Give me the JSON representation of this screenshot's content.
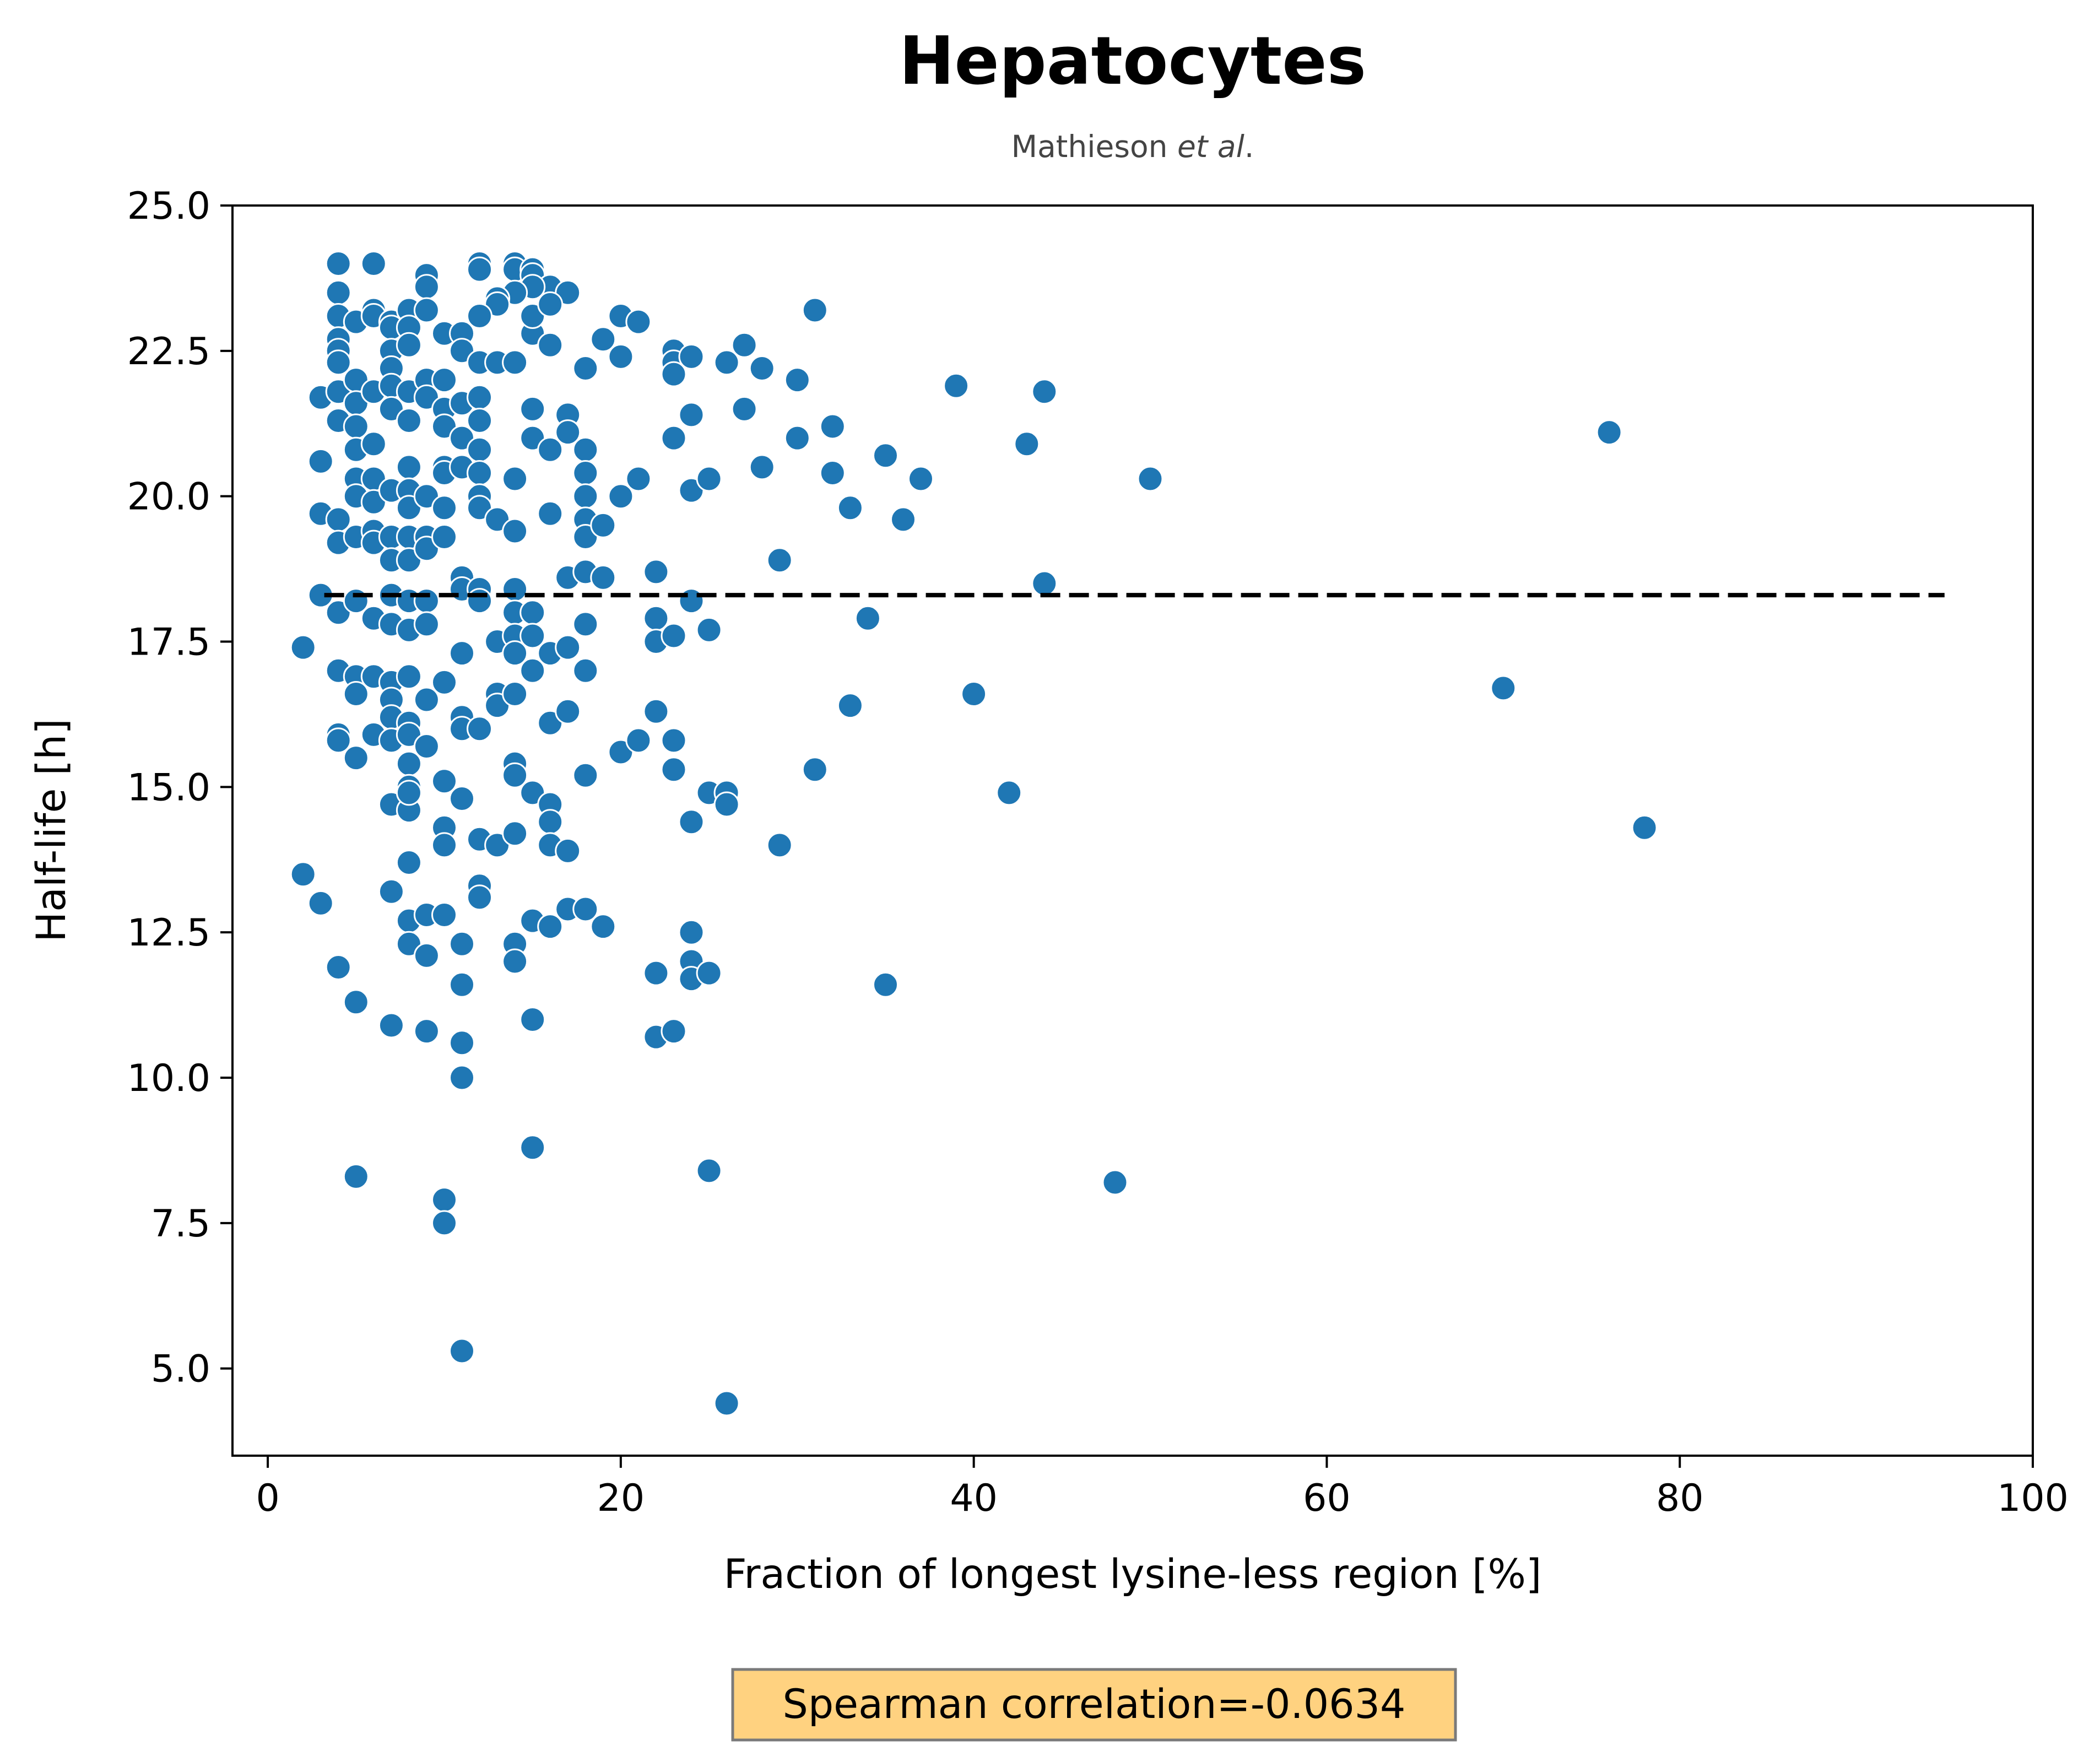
{
  "chart_data": {
    "type": "scatter",
    "title": "Hepatocytes",
    "subtitle_prefix": "Mathieson ",
    "subtitle_italic": "et al",
    "subtitle_suffix": ".",
    "xlabel": "Fraction of longest lysine-less region [%]",
    "ylabel": "Half-life [h]",
    "xlim": [
      -2,
      100
    ],
    "ylim": [
      3.5,
      25
    ],
    "xticks": [
      0,
      20,
      40,
      60,
      80,
      100
    ],
    "xtick_labels": [
      "0",
      "20",
      "40",
      "60",
      "80",
      "100"
    ],
    "yticks": [
      5,
      7.5,
      10,
      12.5,
      15,
      17.5,
      20,
      22.5,
      25
    ],
    "ytick_labels": [
      "5.0",
      "7.5",
      "10.0",
      "12.5",
      "15.0",
      "17.5",
      "20.0",
      "22.5",
      "25.0"
    ],
    "grid": false,
    "marker_color": "#1f77b4",
    "reference_line": {
      "y": 18.3,
      "x": [
        3.2,
        95
      ],
      "style": "dashed",
      "color": "#000000"
    },
    "annotation": {
      "text": "Spearman correlation=-0.0634",
      "background": "#ffd280",
      "border": "#7a7a7a"
    },
    "points": [
      [
        4,
        24.0
      ],
      [
        6,
        24.0
      ],
      [
        4,
        23.5
      ],
      [
        4,
        23.1
      ],
      [
        4,
        22.7
      ],
      [
        4,
        22.5
      ],
      [
        4,
        22.3
      ],
      [
        5,
        23.0
      ],
      [
        6,
        23.2
      ],
      [
        6,
        23.1
      ],
      [
        7,
        23.0
      ],
      [
        7,
        22.9
      ],
      [
        7,
        22.5
      ],
      [
        7,
        22.2
      ],
      [
        8,
        23.2
      ],
      [
        8,
        22.9
      ],
      [
        8,
        22.6
      ],
      [
        9,
        23.8
      ],
      [
        9,
        23.6
      ],
      [
        9,
        23.2
      ],
      [
        10,
        22.8
      ],
      [
        12,
        24.0
      ],
      [
        12,
        23.9
      ],
      [
        14,
        24.0
      ],
      [
        14,
        23.9
      ],
      [
        15,
        23.9
      ],
      [
        15,
        23.8
      ],
      [
        16,
        23.6
      ],
      [
        17,
        23.5
      ],
      [
        15,
        23.6
      ],
      [
        14,
        23.5
      ],
      [
        13,
        23.4
      ],
      [
        13,
        23.3
      ],
      [
        12,
        23.1
      ],
      [
        11,
        22.8
      ],
      [
        11,
        22.5
      ],
      [
        12,
        22.3
      ],
      [
        13,
        22.3
      ],
      [
        14,
        22.3
      ],
      [
        15,
        22.8
      ],
      [
        16,
        22.6
      ],
      [
        15,
        23.1
      ],
      [
        16,
        23.3
      ],
      [
        20,
        23.1
      ],
      [
        21,
        23.0
      ],
      [
        19,
        22.7
      ],
      [
        20,
        22.4
      ],
      [
        18,
        22.2
      ],
      [
        23,
        22.5
      ],
      [
        23,
        22.3
      ],
      [
        23,
        22.1
      ],
      [
        24,
        22.4
      ],
      [
        26,
        22.3
      ],
      [
        27,
        22.6
      ],
      [
        28,
        22.2
      ],
      [
        30,
        22.0
      ],
      [
        31,
        23.2
      ],
      [
        3,
        21.7
      ],
      [
        4,
        21.8
      ],
      [
        4,
        21.3
      ],
      [
        5,
        22.0
      ],
      [
        5,
        21.6
      ],
      [
        5,
        21.2
      ],
      [
        5,
        20.8
      ],
      [
        6,
        21.8
      ],
      [
        6,
        20.9
      ],
      [
        7,
        21.9
      ],
      [
        7,
        21.5
      ],
      [
        8,
        21.8
      ],
      [
        8,
        21.3
      ],
      [
        9,
        22.0
      ],
      [
        9,
        21.7
      ],
      [
        10,
        22.0
      ],
      [
        10,
        21.5
      ],
      [
        10,
        21.2
      ],
      [
        11,
        21.6
      ],
      [
        11,
        21.0
      ],
      [
        12,
        21.7
      ],
      [
        12,
        21.3
      ],
      [
        12,
        20.8
      ],
      [
        15,
        21.5
      ],
      [
        15,
        21.0
      ],
      [
        16,
        20.8
      ],
      [
        17,
        21.4
      ],
      [
        17,
        21.1
      ],
      [
        18,
        20.8
      ],
      [
        24,
        21.4
      ],
      [
        23,
        21.0
      ],
      [
        27,
        21.5
      ],
      [
        30,
        21.0
      ],
      [
        32,
        21.2
      ],
      [
        39,
        21.9
      ],
      [
        44,
        21.8
      ],
      [
        43,
        20.9
      ],
      [
        76,
        21.1
      ],
      [
        3,
        20.6
      ],
      [
        5,
        20.3
      ],
      [
        5,
        20.0
      ],
      [
        6,
        20.3
      ],
      [
        6,
        19.9
      ],
      [
        7,
        20.1
      ],
      [
        8,
        20.5
      ],
      [
        8,
        20.1
      ],
      [
        8,
        19.8
      ],
      [
        9,
        20.0
      ],
      [
        10,
        20.5
      ],
      [
        10,
        20.4
      ],
      [
        10,
        19.8
      ],
      [
        11,
        20.5
      ],
      [
        12,
        20.4
      ],
      [
        12,
        20.0
      ],
      [
        12,
        19.8
      ],
      [
        13,
        19.6
      ],
      [
        14,
        20.3
      ],
      [
        14,
        19.4
      ],
      [
        18,
        20.4
      ],
      [
        18,
        20.0
      ],
      [
        18,
        19.6
      ],
      [
        18,
        19.3
      ],
      [
        19,
        19.5
      ],
      [
        20,
        20.0
      ],
      [
        21,
        20.3
      ],
      [
        24,
        20.1
      ],
      [
        25,
        20.3
      ],
      [
        28,
        20.5
      ],
      [
        32,
        20.4
      ],
      [
        33,
        19.8
      ],
      [
        35,
        20.7
      ],
      [
        36,
        19.6
      ],
      [
        37,
        20.3
      ],
      [
        50,
        20.3
      ],
      [
        3,
        19.7
      ],
      [
        4,
        19.6
      ],
      [
        4,
        19.2
      ],
      [
        5,
        19.3
      ],
      [
        6,
        19.4
      ],
      [
        6,
        19.2
      ],
      [
        7,
        19.3
      ],
      [
        7,
        18.9
      ],
      [
        8,
        19.3
      ],
      [
        8,
        18.9
      ],
      [
        9,
        19.3
      ],
      [
        9,
        19.1
      ],
      [
        10,
        19.3
      ],
      [
        11,
        18.6
      ],
      [
        16,
        19.7
      ],
      [
        29,
        18.9
      ],
      [
        3,
        18.3
      ],
      [
        4,
        18.0
      ],
      [
        5,
        18.2
      ],
      [
        6,
        17.9
      ],
      [
        7,
        18.3
      ],
      [
        7,
        17.8
      ],
      [
        8,
        18.2
      ],
      [
        8,
        17.7
      ],
      [
        9,
        18.2
      ],
      [
        9,
        17.8
      ],
      [
        11,
        18.4
      ],
      [
        12,
        18.4
      ],
      [
        12,
        18.2
      ],
      [
        13,
        17.5
      ],
      [
        14,
        18.4
      ],
      [
        14,
        18.0
      ],
      [
        14,
        17.6
      ],
      [
        15,
        18.0
      ],
      [
        15,
        17.6
      ],
      [
        17,
        18.6
      ],
      [
        18,
        18.7
      ],
      [
        18,
        17.8
      ],
      [
        19,
        18.6
      ],
      [
        22,
        18.7
      ],
      [
        22,
        17.9
      ],
      [
        22,
        17.5
      ],
      [
        23,
        17.6
      ],
      [
        24,
        18.2
      ],
      [
        25,
        17.7
      ],
      [
        34,
        17.9
      ],
      [
        44,
        18.5
      ],
      [
        2,
        17.4
      ],
      [
        4,
        17.0
      ],
      [
        5,
        16.9
      ],
      [
        5,
        16.6
      ],
      [
        6,
        16.9
      ],
      [
        7,
        16.8
      ],
      [
        7,
        16.5
      ],
      [
        7,
        16.2
      ],
      [
        8,
        16.9
      ],
      [
        8,
        16.1
      ],
      [
        9,
        16.5
      ],
      [
        10,
        16.8
      ],
      [
        11,
        17.3
      ],
      [
        11,
        16.2
      ],
      [
        11,
        16.0
      ],
      [
        12,
        16.0
      ],
      [
        13,
        16.6
      ],
      [
        13,
        16.4
      ],
      [
        14,
        17.3
      ],
      [
        14,
        16.6
      ],
      [
        15,
        17.0
      ],
      [
        16,
        17.3
      ],
      [
        16,
        16.1
      ],
      [
        17,
        16.3
      ],
      [
        17,
        17.4
      ],
      [
        18,
        17.0
      ],
      [
        4,
        15.9
      ],
      [
        4,
        15.8
      ],
      [
        5,
        15.5
      ],
      [
        6,
        15.9
      ],
      [
        7,
        15.8
      ],
      [
        8,
        15.9
      ],
      [
        8,
        15.4
      ],
      [
        8,
        15.0
      ],
      [
        9,
        15.7
      ],
      [
        20,
        15.6
      ],
      [
        21,
        15.8
      ],
      [
        22,
        16.3
      ],
      [
        23,
        15.8
      ],
      [
        23,
        15.3
      ],
      [
        31,
        15.3
      ],
      [
        33,
        16.4
      ],
      [
        40,
        16.6
      ],
      [
        70,
        16.7
      ],
      [
        7,
        14.7
      ],
      [
        8,
        14.6
      ],
      [
        8,
        14.9
      ],
      [
        10,
        15.1
      ],
      [
        10,
        14.3
      ],
      [
        10,
        14.0
      ],
      [
        11,
        14.8
      ],
      [
        12,
        14.1
      ],
      [
        13,
        14.0
      ],
      [
        14,
        15.4
      ],
      [
        14,
        15.2
      ],
      [
        14,
        14.2
      ],
      [
        15,
        14.9
      ],
      [
        16,
        14.7
      ],
      [
        16,
        14.4
      ],
      [
        16,
        14.0
      ],
      [
        17,
        13.9
      ],
      [
        18,
        15.2
      ],
      [
        24,
        14.4
      ],
      [
        25,
        14.9
      ],
      [
        26,
        14.9
      ],
      [
        26,
        14.7
      ],
      [
        29,
        14.0
      ],
      [
        42,
        14.9
      ],
      [
        78,
        14.3
      ],
      [
        2,
        13.5
      ],
      [
        3,
        13.0
      ],
      [
        7,
        13.2
      ],
      [
        8,
        13.7
      ],
      [
        8,
        12.7
      ],
      [
        8,
        12.3
      ],
      [
        9,
        12.8
      ],
      [
        9,
        12.1
      ],
      [
        10,
        12.8
      ],
      [
        11,
        12.3
      ],
      [
        12,
        13.3
      ],
      [
        12,
        13.1
      ],
      [
        14,
        12.3
      ],
      [
        14,
        12.0
      ],
      [
        15,
        12.7
      ],
      [
        16,
        12.6
      ],
      [
        17,
        12.9
      ],
      [
        18,
        12.9
      ],
      [
        19,
        12.6
      ],
      [
        24,
        12.5
      ],
      [
        24,
        12.0
      ],
      [
        24,
        11.7
      ],
      [
        25,
        11.8
      ],
      [
        22,
        11.8
      ],
      [
        35,
        11.6
      ],
      [
        4,
        11.9
      ],
      [
        5,
        11.3
      ],
      [
        7,
        10.9
      ],
      [
        9,
        10.8
      ],
      [
        11,
        11.6
      ],
      [
        11,
        10.6
      ],
      [
        11,
        10.0
      ],
      [
        15,
        11.0
      ],
      [
        22,
        10.7
      ],
      [
        23,
        10.8
      ],
      [
        5,
        8.3
      ],
      [
        10,
        7.9
      ],
      [
        10,
        7.5
      ],
      [
        15,
        8.8
      ],
      [
        25,
        8.4
      ],
      [
        48,
        8.2
      ],
      [
        11,
        5.3
      ],
      [
        26,
        4.4
      ]
    ]
  }
}
